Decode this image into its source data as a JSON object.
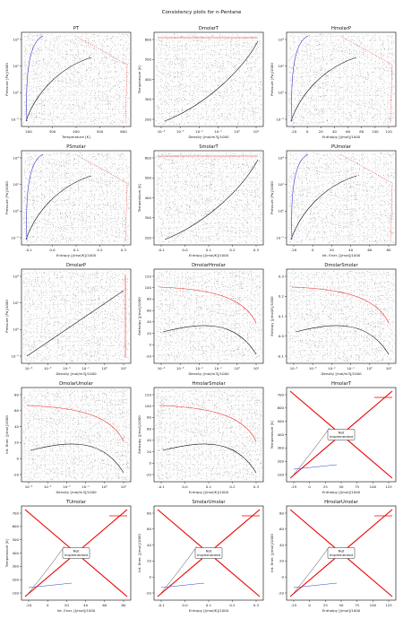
{
  "suptitle": "Consistency plots for n-Pentane",
  "chart_data": [
    {
      "type": "line",
      "title": "PT",
      "xlabel": "Temperature [K]",
      "ylabel": "Pressure [Pa]/1000",
      "x_ticks": [
        "200",
        "300",
        "400",
        "500",
        "600"
      ],
      "y_ticks": [
        "10⁻²",
        "10⁰",
        "10²",
        "10⁴"
      ]
    },
    {
      "type": "line",
      "title": "DmolarT",
      "xlabel": "Density [mol/m3]/1000",
      "ylabel": "Temperature [K]",
      "x_ticks": [
        "10⁻⁴",
        "10⁻³",
        "10⁻²",
        "10⁻¹",
        "10⁰",
        "10¹"
      ],
      "y_ticks": [
        "200",
        "300",
        "400",
        "500",
        "600"
      ]
    },
    {
      "type": "line",
      "title": "HmolarP",
      "xlabel": "Enthalpy [J/mol]/1000",
      "ylabel": "Pressure [Pa]/1000",
      "x_ticks": [
        "-20",
        "0",
        "20",
        "40",
        "60",
        "80",
        "100",
        "120"
      ],
      "y_ticks": [
        "10⁻²",
        "10⁰",
        "10²",
        "10⁴"
      ]
    },
    {
      "type": "line",
      "title": "PSmolar",
      "xlabel": "Entropy [J/mol/K]/1000",
      "ylabel": "Pressure [Pa]/1000",
      "x_ticks": [
        "-0.1",
        "0.0",
        "0.1",
        "0.2",
        "0.3"
      ],
      "y_ticks": [
        "10⁻²",
        "10⁰",
        "10²",
        "10⁴"
      ]
    },
    {
      "type": "line",
      "title": "SmolarT",
      "xlabel": "Entropy [J/mol/K]/1000",
      "ylabel": "Temperature [K]",
      "x_ticks": [
        "-0.1",
        "0.0",
        "0.1",
        "0.2",
        "0.3"
      ],
      "y_ticks": [
        "200",
        "300",
        "400",
        "500",
        "600"
      ]
    },
    {
      "type": "line",
      "title": "PUmolar",
      "xlabel": "Int. Ener. [J/mol]/1000",
      "ylabel": "Pressure [Pa]/1000",
      "x_ticks": [
        "-20",
        "0",
        "20",
        "40",
        "60",
        "80"
      ],
      "y_ticks": [
        "10⁻²",
        "10⁰",
        "10²",
        "10⁴"
      ]
    },
    {
      "type": "line",
      "title": "DmolarP",
      "xlabel": "Density [mol/m3]/1000",
      "ylabel": "Pressure [Pa]/1000",
      "x_ticks": [
        "10⁻⁴",
        "10⁻³",
        "10⁻²",
        "10⁻¹",
        "10⁰",
        "10¹"
      ],
      "y_ticks": [
        "10⁻²",
        "10⁰",
        "10²",
        "10⁴"
      ]
    },
    {
      "type": "line",
      "title": "DmolarHmolar",
      "xlabel": "Density [mol/m3]/1000",
      "ylabel": "Enthalpy [J/mol]/1000",
      "x_ticks": [
        "10⁻⁴",
        "10⁻³",
        "10⁻²",
        "10⁻¹",
        "10⁰",
        "10¹"
      ],
      "y_ticks": [
        "-20",
        "0",
        "20",
        "40",
        "60",
        "80",
        "100",
        "120"
      ]
    },
    {
      "type": "line",
      "title": "DmolarSmolar",
      "xlabel": "Density [mol/m3]/1000",
      "ylabel": "Entropy [J/mol/K]/1000",
      "x_ticks": [
        "10⁻⁴",
        "10⁻³",
        "10⁻²",
        "10⁻¹",
        "10⁰",
        "10¹"
      ],
      "y_ticks": [
        "-0.1",
        "0.0",
        "0.1",
        "0.2",
        "0.3"
      ]
    },
    {
      "type": "line",
      "title": "DmolarUmolar",
      "xlabel": "Density [mol/m3]/1000",
      "ylabel": "Int. Ener. [J/mol]/1000",
      "x_ticks": [
        "10⁻⁴",
        "10⁻³",
        "10⁻²",
        "10⁻¹",
        "10⁰",
        "10¹"
      ],
      "y_ticks": [
        "-20",
        "0",
        "20",
        "40",
        "60",
        "80"
      ]
    },
    {
      "type": "line",
      "title": "HmolarSmolar",
      "xlabel": "Entropy [J/mol/K]/1000",
      "ylabel": "Enthalpy [J/mol]/1000",
      "x_ticks": [
        "-0.1",
        "0.0",
        "0.1",
        "0.2",
        "0.3"
      ],
      "y_ticks": [
        "-20",
        "0",
        "20",
        "40",
        "60",
        "80",
        "100",
        "120"
      ]
    },
    {
      "type": "line",
      "title": "HmolarT",
      "xlabel": "Enthalpy [J/mol]/1000",
      "ylabel": "Temperature [K]",
      "x_ticks": [
        "-25",
        "0",
        "25",
        "50",
        "75",
        "100",
        "125"
      ],
      "y_ticks": [
        "100",
        "200",
        "300",
        "400",
        "500",
        "600",
        "700"
      ],
      "annotation": "Not\nImplemented"
    },
    {
      "type": "line",
      "title": "TUmolar",
      "xlabel": "Int. Ener. [J/mol]/1000",
      "ylabel": "Temperature [K]",
      "x_ticks": [
        "-20",
        "0",
        "20",
        "40",
        "60",
        "80"
      ],
      "y_ticks": [
        "100",
        "200",
        "300",
        "400",
        "500",
        "600",
        "700"
      ],
      "annotation": "Not\nImplemented"
    },
    {
      "type": "line",
      "title": "SmolarUmolar",
      "xlabel": "Entropy [J/mol/K]/1000",
      "ylabel": "Int. Ener. [J/mol]/1000",
      "x_ticks": [
        "-0.1",
        "0.0",
        "0.1",
        "0.2",
        "0.3"
      ],
      "y_ticks": [
        "-20",
        "0",
        "20",
        "40",
        "60",
        "80"
      ],
      "annotation": "Not\nImplemented"
    },
    {
      "type": "line",
      "title": "HmolarUmolar",
      "xlabel": "Enthalpy [J/mol]/1000",
      "ylabel": "Int. Ener. [J/mol]/1000",
      "x_ticks": [
        "-25",
        "0",
        "25",
        "50",
        "75",
        "100",
        "125"
      ],
      "y_ticks": [
        "-20",
        "0",
        "20",
        "40",
        "60",
        "80"
      ],
      "annotation": "Not\nImplemented"
    }
  ]
}
